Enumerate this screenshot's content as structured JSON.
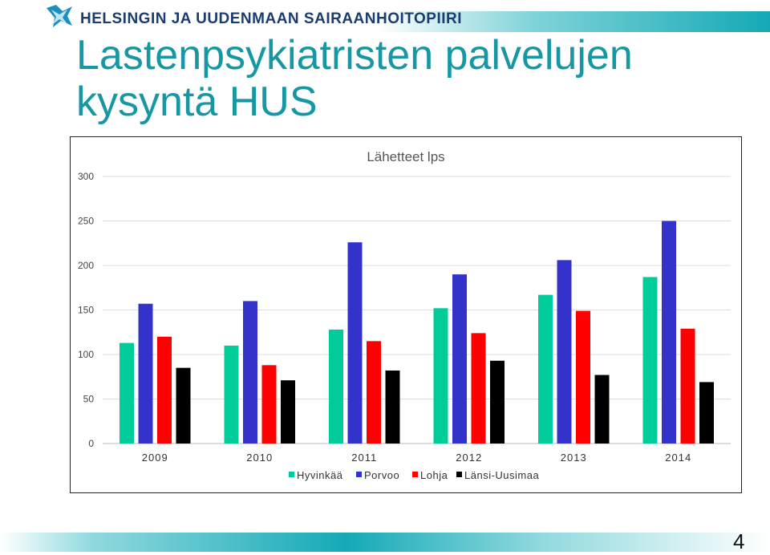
{
  "header": {
    "org_name": "HELSINGIN JA UUDENMAAN SAIRAANHOITOPIIRI",
    "accent_color": "#15a9b7"
  },
  "slide": {
    "title": "Lastenpsykiatristen palvelujen kysyntä HUS",
    "page_number": "4"
  },
  "chart_data": {
    "type": "bar",
    "title": "Lähetteet lps",
    "categories": [
      "2009",
      "2010",
      "2011",
      "2012",
      "2013",
      "2014"
    ],
    "series": [
      {
        "name": "Hyvinkää",
        "color": "#00cc99",
        "values": [
          113,
          110,
          128,
          152,
          167,
          187
        ]
      },
      {
        "name": "Porvoo",
        "color": "#3333cc",
        "values": [
          157,
          160,
          226,
          190,
          206,
          250
        ]
      },
      {
        "name": "Lohja",
        "color": "#ff0000",
        "values": [
          120,
          88,
          115,
          124,
          149,
          129
        ]
      },
      {
        "name": "Länsi-Uusimaa",
        "color": "#000000",
        "values": [
          85,
          71,
          82,
          93,
          77,
          69
        ]
      }
    ],
    "ylim": [
      0,
      300
    ],
    "yticks": [
      0,
      50,
      100,
      150,
      200,
      250,
      300
    ],
    "grid": true,
    "legend_position": "bottom"
  }
}
